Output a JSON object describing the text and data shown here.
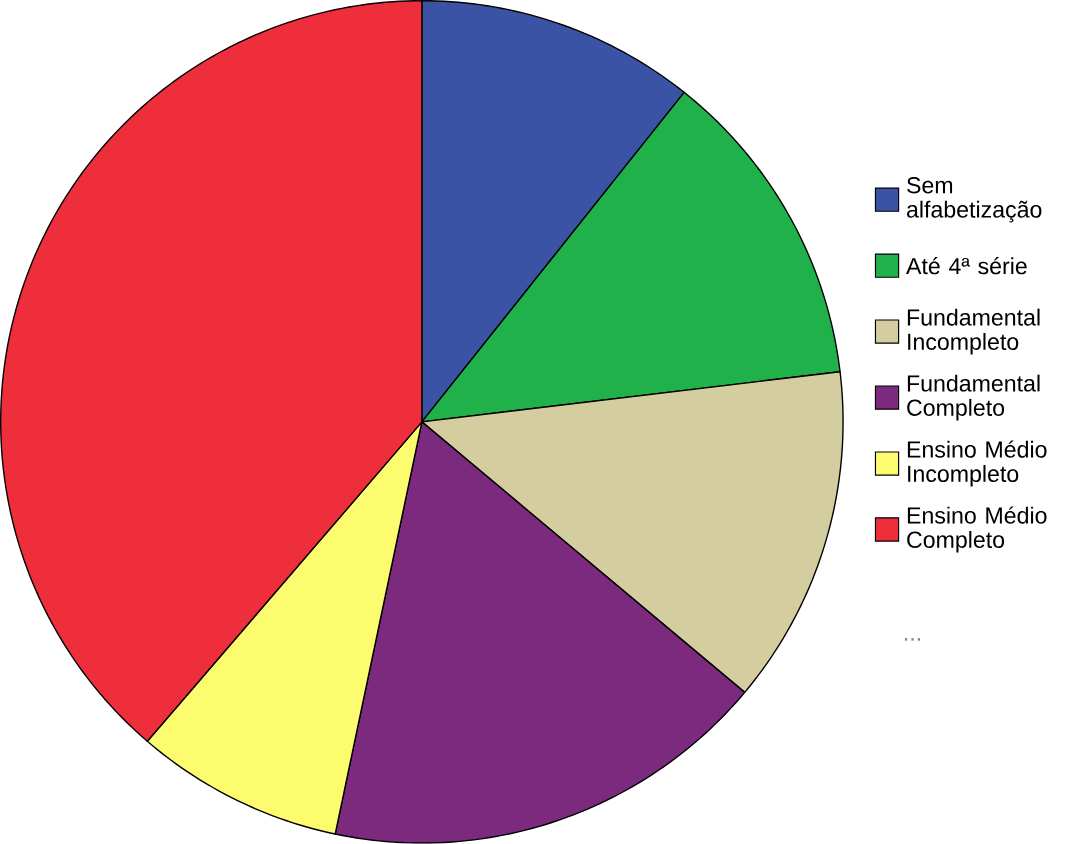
{
  "chart_data": {
    "type": "pie",
    "categories": [
      "Sem alfabetização",
      "Até 4ª série",
      "Fundamental Incompleto",
      "Fundamental Completo",
      "Ensino Médio Incompleto",
      "Ensino Médio Completo"
    ],
    "values": [
      10.7,
      12.4,
      13,
      17.2,
      8,
      38.7
    ],
    "colors": [
      "#3a53a4",
      "#21b14a",
      "#d3cda0",
      "#7b2a7e",
      "#fdfb6e",
      "#ee2f3b"
    ],
    "legend": "right",
    "annotations": [
      "..."
    ]
  }
}
